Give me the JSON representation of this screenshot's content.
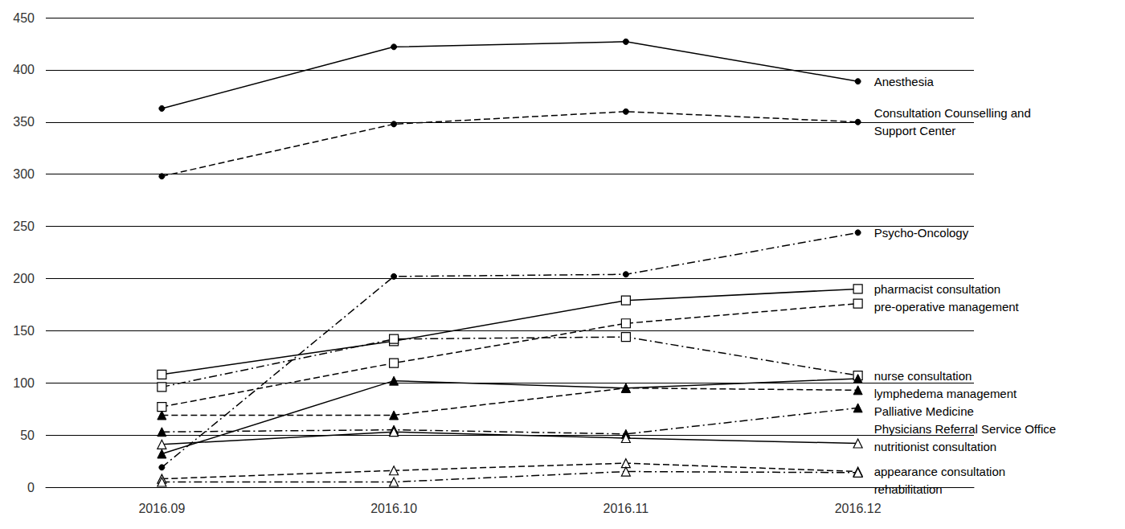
{
  "chart_data": {
    "type": "line",
    "categories": [
      "2016.09",
      "2016.10",
      "2016.11",
      "2016.12"
    ],
    "series": [
      {
        "name": "Anesthesia",
        "color": "#000000",
        "marker": "circle",
        "line_style": "solid",
        "values": [
          363,
          422,
          427,
          389
        ]
      },
      {
        "name": "Consultation Counselling and Support Center",
        "color": "#000000",
        "marker": "circle",
        "line_style": "dashed",
        "values": [
          298,
          348,
          360,
          350
        ]
      },
      {
        "name": "Psycho-Oncology",
        "color": "#000000",
        "marker": "circle",
        "line_style": "dashdot",
        "values": [
          19,
          202,
          204,
          244
        ]
      },
      {
        "name": "pharmacist consultation",
        "color": "#000000",
        "marker": "open_square",
        "line_style": "solid",
        "values": [
          108,
          140,
          179,
          190
        ]
      },
      {
        "name": "pre-operative management",
        "color": "#000000",
        "marker": "open_square",
        "line_style": "dashed",
        "values": [
          77,
          119,
          157,
          176
        ]
      },
      {
        "name": "nurse consultation",
        "color": "#000000",
        "marker": "open_square",
        "line_style": "dashdot",
        "values": [
          96,
          142,
          144,
          107
        ]
      },
      {
        "name": "lymphedema management",
        "color": "#000000",
        "marker": "triangle",
        "line_style": "solid",
        "values": [
          32,
          102,
          95,
          104
        ]
      },
      {
        "name": "Palliative Medicine",
        "color": "#000000",
        "marker": "triangle",
        "line_style": "dashed",
        "values": [
          69,
          69,
          95,
          93
        ]
      },
      {
        "name": "Physicians Referral Service Office",
        "color": "#000000",
        "marker": "triangle",
        "line_style": "dashdot",
        "values": [
          53,
          55,
          51,
          76
        ]
      },
      {
        "name": "nutritionist consultation",
        "color": "#000000",
        "marker": "open_triangle",
        "line_style": "solid",
        "values": [
          41,
          53,
          47,
          42
        ]
      },
      {
        "name": "appearance consultation",
        "color": "#000000",
        "marker": "open_triangle",
        "line_style": "dashed",
        "values": [
          8,
          16,
          23,
          15
        ]
      },
      {
        "name": "rehabilitation",
        "color": "#000000",
        "marker": "open_triangle",
        "line_style": "dashdot",
        "values": [
          5,
          5,
          15,
          14
        ]
      }
    ],
    "ylim": [
      0,
      450
    ],
    "yticks": [
      0,
      50,
      100,
      150,
      200,
      250,
      300,
      350,
      400,
      450
    ],
    "grid": true
  }
}
